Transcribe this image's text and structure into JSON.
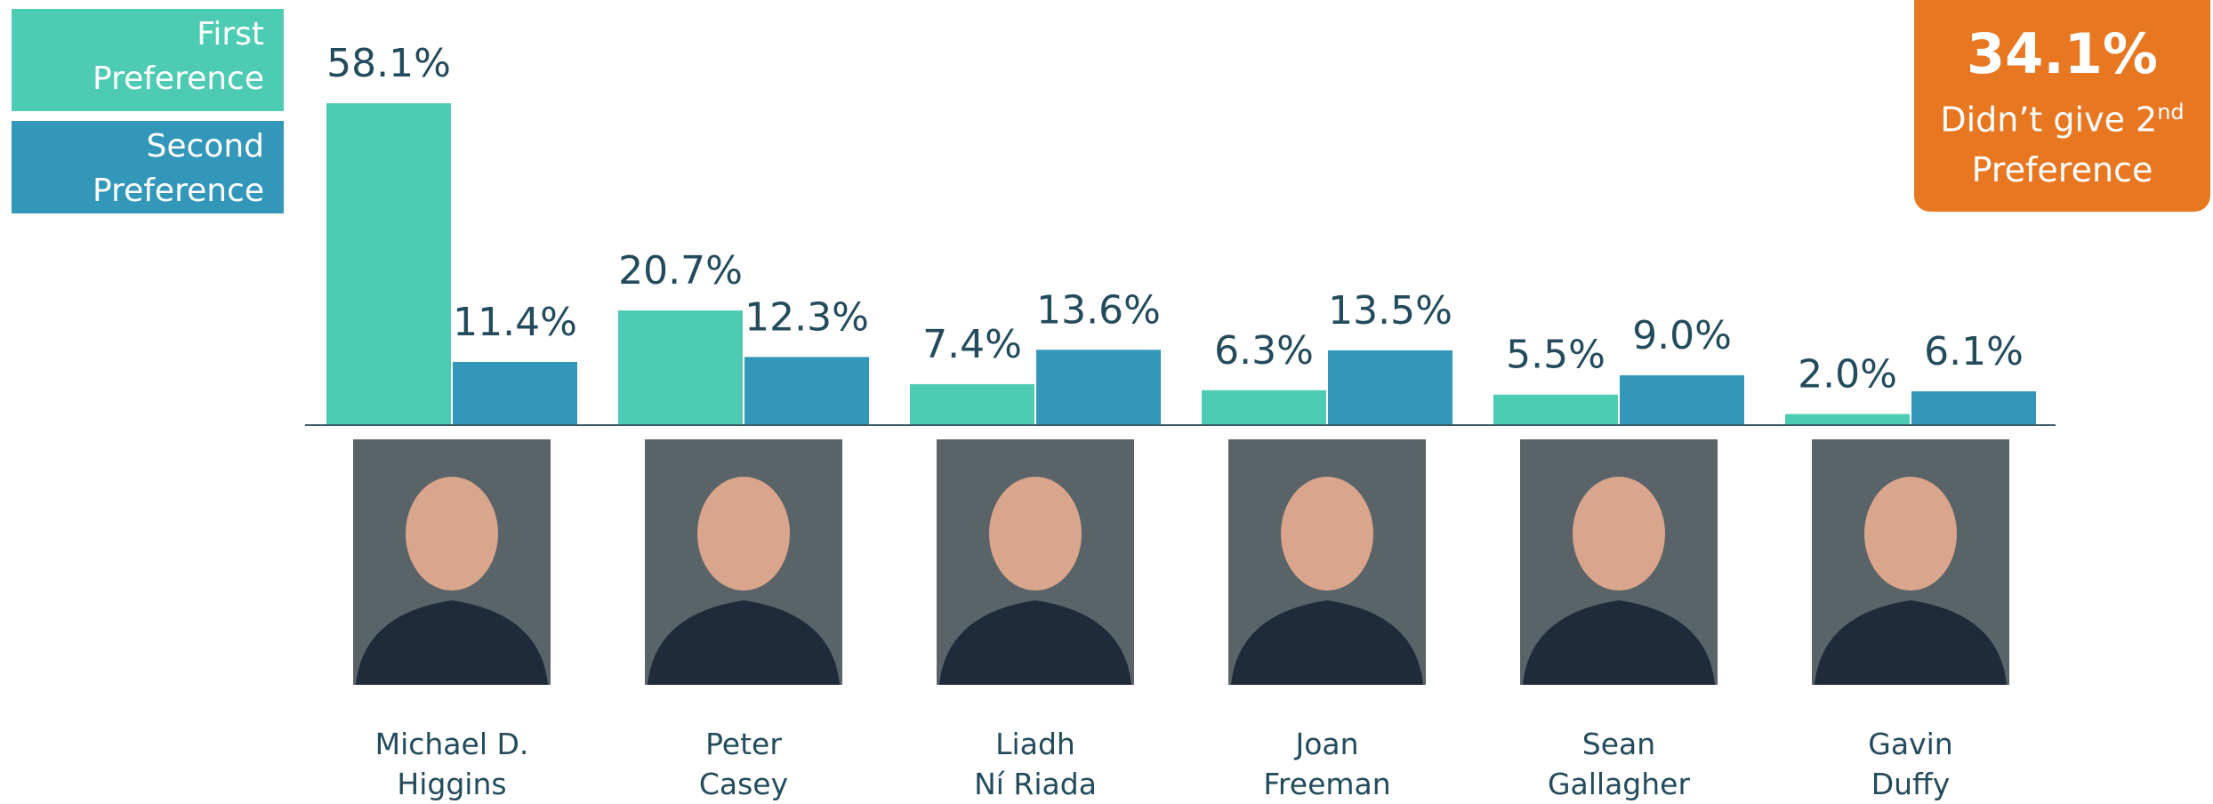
{
  "chart_data": {
    "type": "bar",
    "categories": [
      "Michael D.\nHiggins",
      "Peter\nCasey",
      "Liadh\nNí Riada",
      "Joan\nFreeman",
      "Sean\nGallagher",
      "Gavin\nDuffy"
    ],
    "series": [
      {
        "name": "First Preference",
        "color": "#4ecbb3",
        "values": [
          58.1,
          20.7,
          7.4,
          6.3,
          5.5,
          2.0
        ],
        "value_labels": [
          "58.1%",
          "20.7%",
          "7.4%",
          "6.3%",
          "5.5%",
          "2.0%"
        ]
      },
      {
        "name": "Second Preference",
        "color": "#3397b9",
        "values": [
          11.4,
          12.3,
          13.6,
          13.5,
          9.0,
          6.1
        ],
        "value_labels": [
          "11.4%",
          "12.3%",
          "13.6%",
          "13.5%",
          "9.0%",
          "6.1%"
        ]
      }
    ],
    "legend": "top-left",
    "annotation": {
      "headline": "34.1%",
      "text": "Didn’t give 2",
      "superscript": "nd",
      "text_end": "Preference",
      "color": "#e87722"
    }
  }
}
